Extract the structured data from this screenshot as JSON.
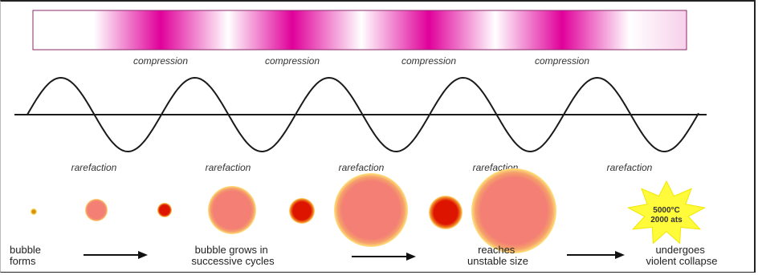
{
  "band": {
    "colors": {
      "dark": "#e0009a",
      "light": "#ffffff",
      "outline": "#8a2a6a"
    },
    "compression_labels": [
      "compression",
      "compression",
      "compression",
      "compression"
    ]
  },
  "wave": {
    "rarefaction_labels": [
      "rarefaction",
      "rarefaction",
      "rarefaction",
      "rarefaction",
      "rarefaction"
    ],
    "color": "#1a1a1a"
  },
  "bubbles": {
    "count": 8,
    "colors": {
      "glow": "#ffe27a",
      "pink": "#f47f74",
      "red": "#dd1400",
      "small_core": "#e0a000"
    }
  },
  "star": {
    "temperature": "5000°C",
    "pressure": "2000 ats",
    "color": "#fffa3a"
  },
  "captions": {
    "forms": [
      "bubble",
      "forms"
    ],
    "grows": [
      "bubble grows in",
      "successive cycles"
    ],
    "reaches": [
      "reaches",
      "unstable size"
    ],
    "collapse": [
      "undergoes",
      "violent collapse"
    ]
  },
  "arrows": {
    "count": 3,
    "color": "#111111"
  }
}
